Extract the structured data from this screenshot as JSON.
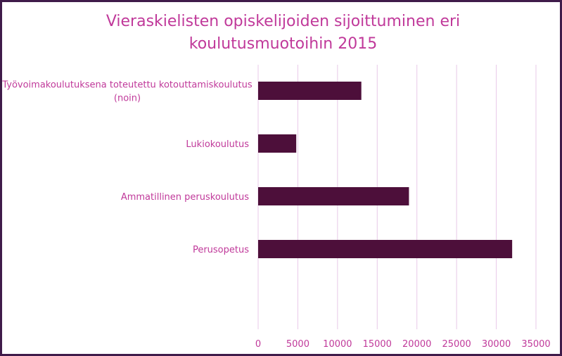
{
  "chart_data": {
    "type": "bar",
    "orientation": "horizontal",
    "title_lines": [
      "Vieraskielisten opiskelijoiden sijoittuminen eri",
      "koulutusmuotoihin 2015"
    ],
    "categories": [
      [
        "Työvoimakoulutuksena toteutettu kotouttamiskoulutus",
        "(noin)"
      ],
      [
        "Lukiokoulutus"
      ],
      [
        "Ammatillinen peruskoulutus"
      ],
      [
        "Perusopetus"
      ]
    ],
    "values": [
      13000,
      4800,
      19000,
      32000
    ],
    "xlim": [
      0,
      35000
    ],
    "xticks": [
      "0",
      "5000",
      "10000",
      "15000",
      "20000",
      "25000",
      "30000",
      "35000"
    ],
    "grid": true,
    "colors": {
      "bar": "#4d0f3a",
      "grid": "#e8c8e8",
      "text": "#c0399a",
      "frame": "#3f1b4a"
    }
  }
}
